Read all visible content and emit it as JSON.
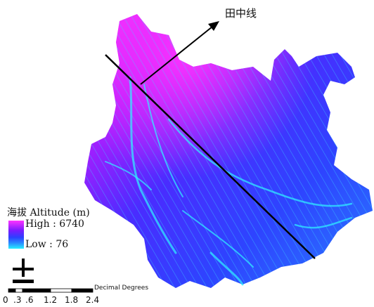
{
  "line_label": "田中线",
  "legend": {
    "title": "海拔 Altitude (m)",
    "high": "High : 6740",
    "low": "Low : 76",
    "colors": {
      "high": "#ff33ff",
      "mid": "#2c40ff",
      "low": "#27f0ff"
    }
  },
  "north_arrow": {
    "icon": "north-arrow-icon"
  },
  "scale_bar": {
    "unit": "Decimal Degrees",
    "ticks": [
      "0",
      ".3",
      ".6",
      "1.2",
      "1.8",
      "2.4"
    ]
  }
}
